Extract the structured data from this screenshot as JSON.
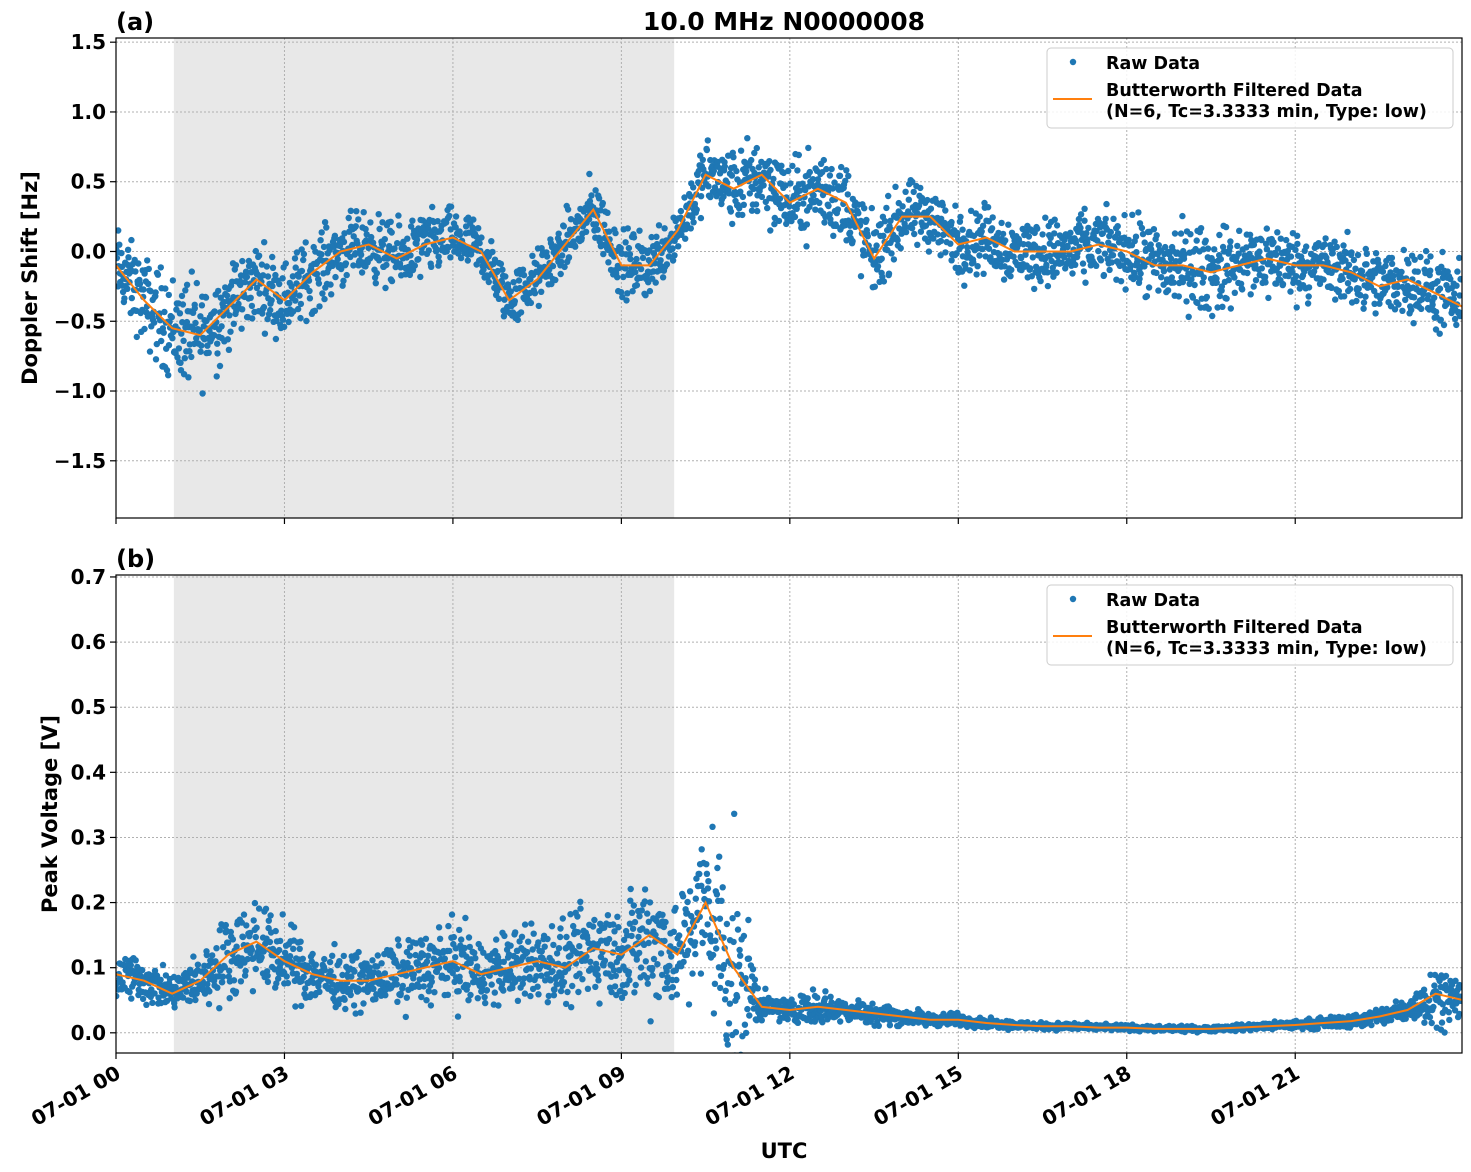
{
  "title": "10.0 MHz N0000008",
  "colors": {
    "raw": "#1f77b4",
    "filtered": "#ff7f0e",
    "shade": "#e8e8e8"
  },
  "chart_data": [
    {
      "type": "scatter+line",
      "panel_label": "(a)",
      "ylabel": "Doppler Shift [Hz]",
      "xlabel": "",
      "xlim_hours": [
        0,
        23.97
      ],
      "ylim": [
        -1.91,
        1.53
      ],
      "yticks": [
        1.5,
        1.0,
        0.5,
        0.0,
        -0.5,
        -1.0,
        -1.5
      ],
      "ytick_labels": [
        "1.5",
        "1.0",
        "0.5",
        "0.0",
        "−0.5",
        "−1.0",
        "−1.5"
      ],
      "grid": true,
      "shaded_hours": [
        1.03,
        9.94
      ],
      "legend": {
        "placement": "top-right",
        "entries": [
          "Raw Data",
          "Butterworth Filtered Data",
          "(N=6, Tc=3.3333 min, Type: low)"
        ]
      },
      "hours": [
        0,
        0.5,
        1,
        1.5,
        2,
        2.5,
        3,
        3.5,
        4,
        4.5,
        5,
        5.5,
        6,
        6.5,
        7,
        7.5,
        8,
        8.5,
        9,
        9.5,
        10,
        10.5,
        11,
        11.5,
        12,
        12.5,
        13,
        13.5,
        14,
        14.5,
        15,
        15.5,
        16,
        16.5,
        17,
        17.5,
        18,
        18.5,
        19,
        19.5,
        20,
        20.5,
        21,
        21.5,
        22,
        22.5,
        23,
        23.5,
        24
      ],
      "filtered": [
        -0.1,
        -0.35,
        -0.55,
        -0.6,
        -0.4,
        -0.2,
        -0.35,
        -0.15,
        0.0,
        0.05,
        -0.05,
        0.05,
        0.1,
        0.0,
        -0.35,
        -0.2,
        0.05,
        0.3,
        -0.1,
        -0.1,
        0.15,
        0.55,
        0.45,
        0.55,
        0.35,
        0.45,
        0.35,
        -0.05,
        0.25,
        0.25,
        0.05,
        0.1,
        0.0,
        0.0,
        0.0,
        0.05,
        0.0,
        -0.1,
        -0.1,
        -0.15,
        -0.1,
        -0.05,
        -0.1,
        -0.1,
        -0.15,
        -0.25,
        -0.2,
        -0.3,
        -0.4
      ],
      "raw_spread": [
        0.4,
        0.45,
        0.55,
        0.55,
        0.45,
        0.4,
        0.4,
        0.4,
        0.35,
        0.35,
        0.35,
        0.35,
        0.3,
        0.3,
        0.3,
        0.3,
        0.3,
        0.35,
        0.35,
        0.35,
        0.3,
        0.35,
        0.4,
        0.45,
        0.4,
        0.45,
        0.45,
        0.4,
        0.35,
        0.35,
        0.35,
        0.35,
        0.35,
        0.35,
        0.35,
        0.35,
        0.35,
        0.45,
        0.45,
        0.45,
        0.4,
        0.4,
        0.35,
        0.35,
        0.35,
        0.35,
        0.35,
        0.4,
        0.4
      ]
    },
    {
      "type": "scatter+line",
      "panel_label": "(b)",
      "ylabel": "Peak Voltage [V]",
      "xlabel": "UTC",
      "xlim_hours": [
        0,
        23.97
      ],
      "ylim": [
        -0.031,
        0.703
      ],
      "yticks": [
        0.0,
        0.1,
        0.2,
        0.3,
        0.4,
        0.5,
        0.6,
        0.7
      ],
      "ytick_labels": [
        "0.0",
        "0.1",
        "0.2",
        "0.3",
        "0.4",
        "0.5",
        "0.6",
        "0.7"
      ],
      "xticks_hours": [
        0,
        3,
        6,
        9,
        12,
        15,
        18,
        21
      ],
      "xtick_labels": [
        "07-01 00",
        "07-01 03",
        "07-01 06",
        "07-01 09",
        "07-01 12",
        "07-01 15",
        "07-01 18",
        "07-01 21"
      ],
      "grid": true,
      "shaded_hours": [
        1.03,
        9.94
      ],
      "legend": {
        "placement": "top-right",
        "entries": [
          "Raw Data",
          "Butterworth Filtered Data",
          "(N=6, Tc=3.3333 min, Type: low)"
        ]
      },
      "hours": [
        0,
        0.5,
        1,
        1.5,
        2,
        2.5,
        3,
        3.5,
        4,
        4.5,
        5,
        5.5,
        6,
        6.5,
        7,
        7.5,
        8,
        8.5,
        9,
        9.5,
        10,
        10.5,
        11,
        11.5,
        12,
        12.5,
        13,
        13.5,
        14,
        14.5,
        15,
        15.5,
        16,
        16.5,
        17,
        17.5,
        18,
        18.5,
        19,
        19.5,
        20,
        20.5,
        21,
        21.5,
        22,
        22.5,
        23,
        23.5,
        24
      ],
      "filtered": [
        0.09,
        0.08,
        0.06,
        0.08,
        0.12,
        0.14,
        0.11,
        0.09,
        0.08,
        0.08,
        0.09,
        0.1,
        0.11,
        0.09,
        0.1,
        0.11,
        0.1,
        0.13,
        0.12,
        0.15,
        0.12,
        0.2,
        0.1,
        0.04,
        0.035,
        0.04,
        0.035,
        0.03,
        0.025,
        0.02,
        0.02,
        0.015,
        0.012,
        0.01,
        0.01,
        0.008,
        0.008,
        0.006,
        0.006,
        0.006,
        0.008,
        0.01,
        0.012,
        0.015,
        0.018,
        0.025,
        0.035,
        0.06,
        0.05
      ],
      "raw_spread": [
        0.06,
        0.05,
        0.04,
        0.06,
        0.09,
        0.1,
        0.08,
        0.07,
        0.06,
        0.06,
        0.07,
        0.08,
        0.09,
        0.08,
        0.08,
        0.09,
        0.09,
        0.12,
        0.11,
        0.16,
        0.12,
        0.2,
        0.25,
        0.03,
        0.025,
        0.04,
        0.025,
        0.025,
        0.02,
        0.015,
        0.015,
        0.01,
        0.01,
        0.008,
        0.008,
        0.007,
        0.007,
        0.006,
        0.006,
        0.006,
        0.007,
        0.008,
        0.01,
        0.012,
        0.014,
        0.02,
        0.03,
        0.07,
        0.04
      ]
    }
  ]
}
